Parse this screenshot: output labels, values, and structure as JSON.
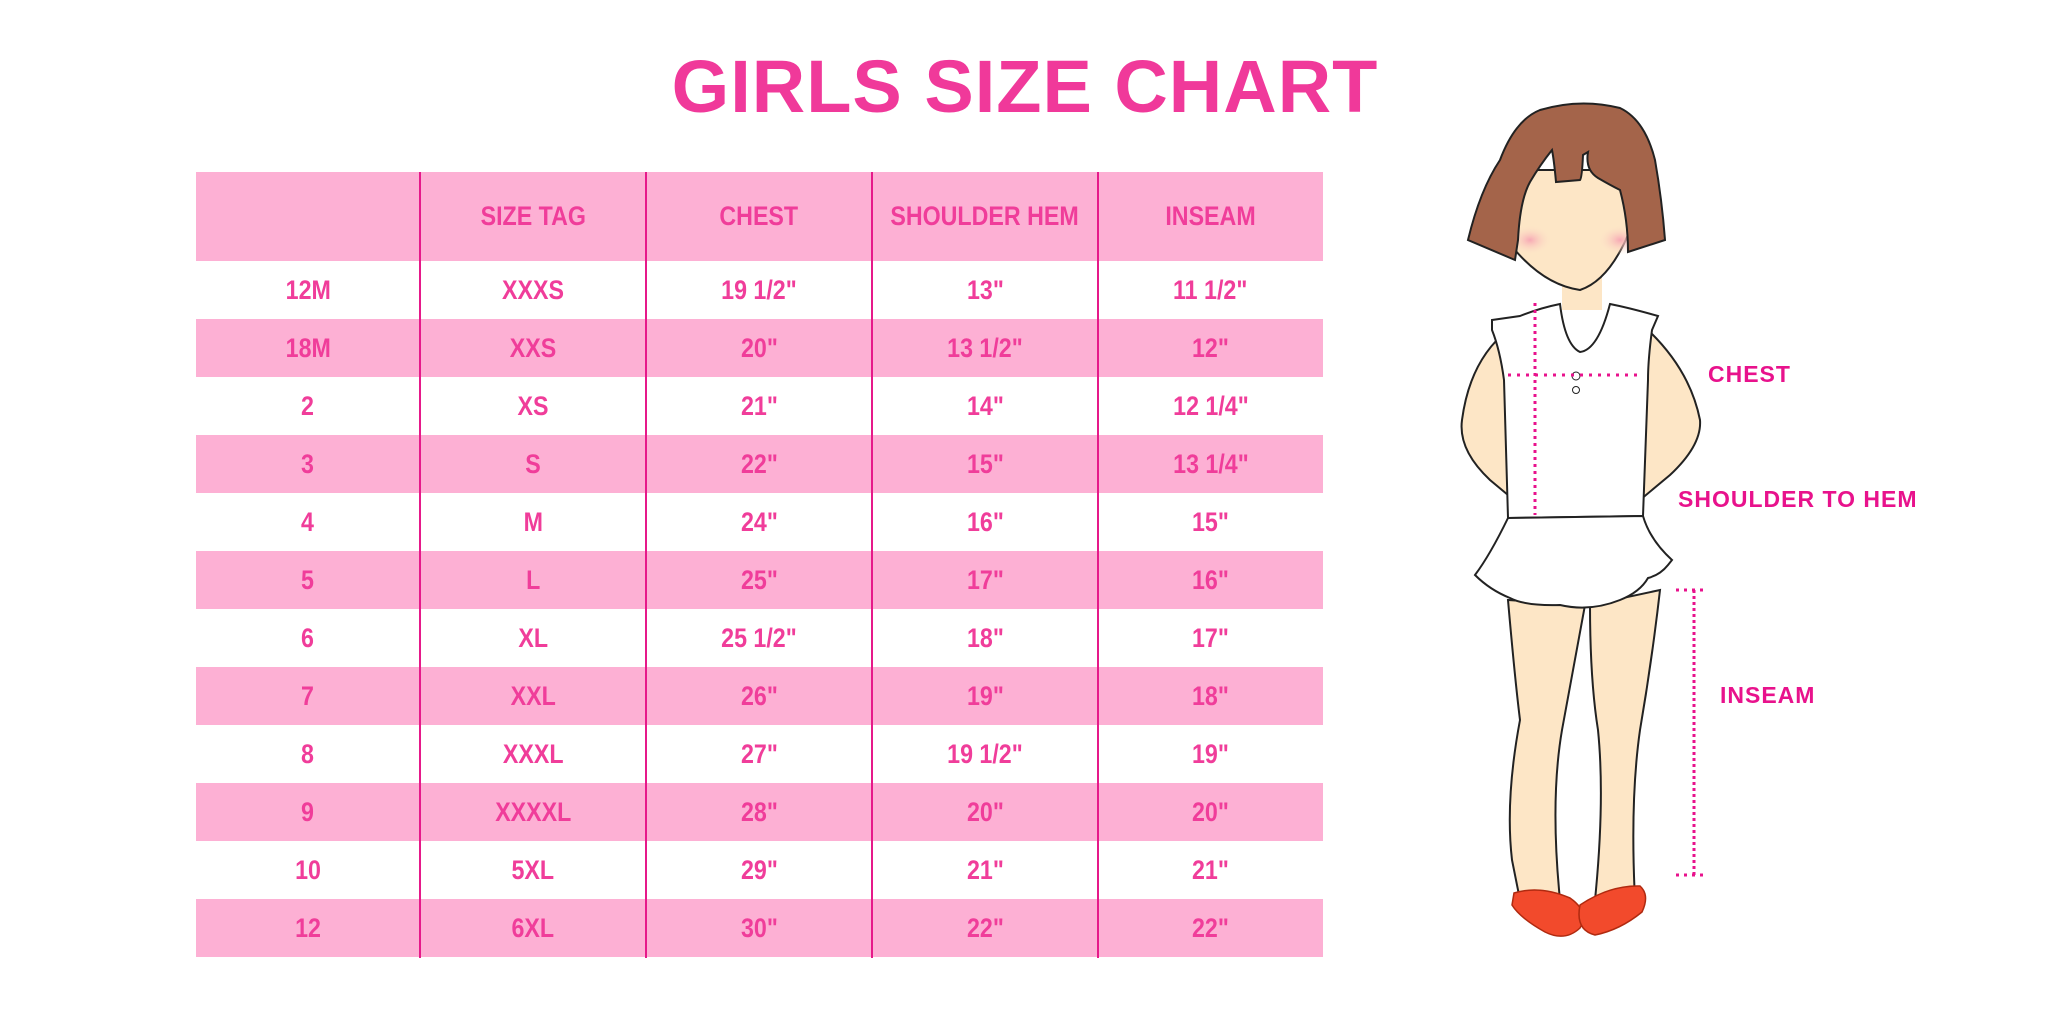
{
  "title": "GIRLS SIZE CHART",
  "colors": {
    "title": "#f0399a",
    "row_pink": "#fdb0d4",
    "divider": "#e6198a",
    "label": "#e8128c"
  },
  "table": {
    "headers": [
      "",
      "SIZE TAG",
      "CHEST",
      "SHOULDER HEM",
      "INSEAM"
    ],
    "rows": [
      [
        "12M",
        "XXXS",
        "19 1/2\"",
        "13\"",
        "11 1/2\""
      ],
      [
        "18M",
        "XXS",
        "20\"",
        "13 1/2\"",
        "12\""
      ],
      [
        "2",
        "XS",
        "21\"",
        "14\"",
        "12 1/4\""
      ],
      [
        "3",
        "S",
        "22\"",
        "15\"",
        "13 1/4\""
      ],
      [
        "4",
        "M",
        "24\"",
        "16\"",
        "15\""
      ],
      [
        "5",
        "L",
        "25\"",
        "17\"",
        "16\""
      ],
      [
        "6",
        "XL",
        "25 1/2\"",
        "18\"",
        "17\""
      ],
      [
        "7",
        "XXL",
        "26\"",
        "19\"",
        "18\""
      ],
      [
        "8",
        "XXXL",
        "27\"",
        "19 1/2\"",
        "19\""
      ],
      [
        "9",
        "XXXXL",
        "28\"",
        "20\"",
        "20\""
      ],
      [
        "10",
        "5XL",
        "29\"",
        "21\"",
        "21\""
      ],
      [
        "12",
        "6XL",
        "30\"",
        "22\"",
        "22\""
      ]
    ]
  },
  "diagram": {
    "labels": {
      "chest": "CHEST",
      "shoulder_to_hem": "SHOULDER TO HEM",
      "inseam": "INSEAM"
    }
  }
}
